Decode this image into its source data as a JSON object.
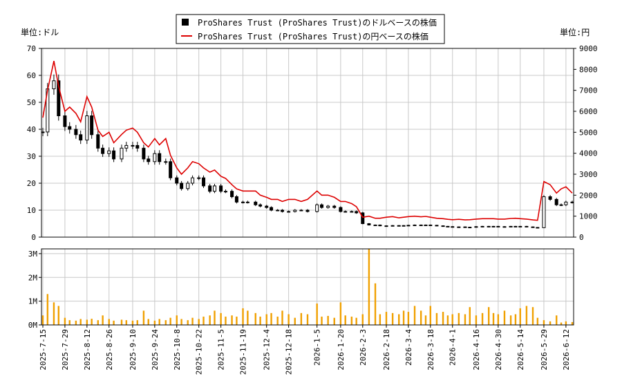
{
  "chart_data": {
    "type": "line",
    "legend": {
      "placement": "top-center",
      "items": [
        {
          "label": "ProShares Trust (ProShares Trust)のドルベースの株価",
          "swatch": "black-square",
          "color": "#000000"
        },
        {
          "label": "ProShares Trust (ProShares Trust)の円ベースの株価",
          "swatch": "red-line",
          "color": "#dd0000"
        }
      ]
    },
    "left_axis": {
      "unit_label": "単位:ドル",
      "ylim": [
        0,
        70
      ],
      "ticks": [
        0,
        10,
        20,
        30,
        40,
        50,
        60,
        70
      ]
    },
    "right_axis": {
      "unit_label": "単位:円",
      "ylim": [
        0,
        9000
      ],
      "ticks": [
        0,
        1000,
        2000,
        3000,
        4000,
        5000,
        6000,
        7000,
        8000,
        9000
      ]
    },
    "volume_axis": {
      "ylim": [
        0,
        3200000
      ],
      "ticks": [
        {
          "v": 0,
          "label": "0M"
        },
        {
          "v": 1000000,
          "label": "1M"
        },
        {
          "v": 2000000,
          "label": "2M"
        },
        {
          "v": 3000000,
          "label": "3M"
        }
      ]
    },
    "x_ticks": [
      "2025-7-15",
      "2025-7-29",
      "2025-8-12",
      "2025-8-26",
      "2025-9-10",
      "2025-9-24",
      "2025-10-8",
      "2025-10-22",
      "2025-11-5",
      "2025-11-19",
      "2025-12-4",
      "2025-12-18",
      "2026-1-5",
      "2026-1-20",
      "2026-2-3",
      "2026-2-18",
      "2026-3-4",
      "2026-3-18",
      "2026-4-1",
      "2026-4-16",
      "2026-4-30",
      "2026-5-14",
      "2026-5-29",
      "2026-6-12"
    ],
    "grid": true,
    "colors": {
      "usd_candle": "#000000",
      "jpy_line": "#dd0000",
      "volume_bar": "#f0a000",
      "grid": "#c8c8c8"
    },
    "series": [
      {
        "name": "ProShares Trust (ProShares Trust)のドルベースの株価",
        "axis": "left",
        "x": [
          "2025-7-15",
          "2025-7-18",
          "2025-7-22",
          "2025-7-25",
          "2025-7-29",
          "2025-8-1",
          "2025-8-5",
          "2025-8-8",
          "2025-8-12",
          "2025-8-15",
          "2025-8-19",
          "2025-8-22",
          "2025-8-26",
          "2025-8-29",
          "2025-9-3",
          "2025-9-6",
          "2025-9-10",
          "2025-9-13",
          "2025-9-17",
          "2025-9-20",
          "2025-9-24",
          "2025-9-27",
          "2025-10-1",
          "2025-10-4",
          "2025-10-8",
          "2025-10-11",
          "2025-10-15",
          "2025-10-18",
          "2025-10-22",
          "2025-10-25",
          "2025-10-29",
          "2025-11-1",
          "2025-11-5",
          "2025-11-8",
          "2025-11-12",
          "2025-11-15",
          "2025-11-19",
          "2025-11-22",
          "2025-11-27",
          "2025-11-30",
          "2025-12-4",
          "2025-12-7",
          "2025-12-11",
          "2025-12-14",
          "2025-12-18",
          "2025-12-22",
          "2025-12-26",
          "2025-12-30",
          "2026-1-5",
          "2026-1-8",
          "2026-1-12",
          "2026-1-16",
          "2026-1-20",
          "2026-1-23",
          "2026-1-27",
          "2026-1-30",
          "2026-2-3",
          "2026-2-7",
          "2026-2-11",
          "2026-2-14",
          "2026-2-18",
          "2026-2-22",
          "2026-2-26",
          "2026-3-1",
          "2026-3-4",
          "2026-3-8",
          "2026-3-12",
          "2026-3-15",
          "2026-3-18",
          "2026-3-22",
          "2026-3-26",
          "2026-3-29",
          "2026-4-1",
          "2026-4-5",
          "2026-4-9",
          "2026-4-12",
          "2026-4-16",
          "2026-4-20",
          "2026-4-24",
          "2026-4-27",
          "2026-4-30",
          "2026-5-4",
          "2026-5-8",
          "2026-5-11",
          "2026-5-14",
          "2026-5-18",
          "2026-5-22",
          "2026-5-25",
          "2026-5-29",
          "2026-6-2",
          "2026-6-6",
          "2026-6-9",
          "2026-6-12",
          "2026-6-16"
        ],
        "values": [
          39,
          55,
          58,
          45,
          41,
          40,
          38,
          36,
          45,
          38,
          33,
          31,
          32,
          29,
          33,
          34,
          34,
          33,
          29,
          28,
          31,
          28,
          28,
          22,
          20,
          18,
          20,
          22,
          22,
          19,
          17,
          19,
          17,
          17,
          15,
          13,
          13,
          13,
          12,
          11.5,
          11,
          10,
          10,
          9.5,
          9.5,
          10,
          10,
          9.5,
          12,
          11,
          11.5,
          11,
          9.5,
          9.5,
          9.5,
          9,
          5,
          4.5,
          4.5,
          4.2,
          4.2,
          4.3,
          4.3,
          4.3,
          4.4,
          4.5,
          4.4,
          4.5,
          4.4,
          4.2,
          4.0,
          3.9,
          3.8,
          3.8,
          3.7,
          3.7,
          3.9,
          4.0,
          4.0,
          4.0,
          3.9,
          3.9,
          4.0,
          4.0,
          4.0,
          3.8,
          3.6,
          3.5,
          15,
          14,
          12,
          12,
          13,
          13
        ]
      },
      {
        "name": "ProShares Trust (ProShares Trust)の円ベースの株価",
        "axis": "right",
        "x": [
          "2025-7-15",
          "2025-7-18",
          "2025-7-22",
          "2025-7-25",
          "2025-7-29",
          "2025-8-1",
          "2025-8-5",
          "2025-8-8",
          "2025-8-12",
          "2025-8-15",
          "2025-8-19",
          "2025-8-22",
          "2025-8-26",
          "2025-8-29",
          "2025-9-3",
          "2025-9-6",
          "2025-9-10",
          "2025-9-13",
          "2025-9-17",
          "2025-9-20",
          "2025-9-24",
          "2025-9-27",
          "2025-10-1",
          "2025-10-4",
          "2025-10-8",
          "2025-10-11",
          "2025-10-15",
          "2025-10-18",
          "2025-10-22",
          "2025-10-25",
          "2025-10-29",
          "2025-11-1",
          "2025-11-5",
          "2025-11-8",
          "2025-11-12",
          "2025-11-15",
          "2025-11-19",
          "2025-11-22",
          "2025-11-27",
          "2025-11-30",
          "2025-12-4",
          "2025-12-7",
          "2025-12-11",
          "2025-12-14",
          "2025-12-18",
          "2025-12-22",
          "2025-12-26",
          "2025-12-30",
          "2026-1-5",
          "2026-1-8",
          "2026-1-12",
          "2026-1-16",
          "2026-1-20",
          "2026-1-23",
          "2026-1-27",
          "2026-1-30",
          "2026-2-3",
          "2026-2-7",
          "2026-2-11",
          "2026-2-14",
          "2026-2-18",
          "2026-2-22",
          "2026-2-26",
          "2026-3-1",
          "2026-3-4",
          "2026-3-8",
          "2026-3-12",
          "2026-3-15",
          "2026-3-18",
          "2026-3-22",
          "2026-3-26",
          "2026-3-29",
          "2026-4-1",
          "2026-4-5",
          "2026-4-9",
          "2026-4-12",
          "2026-4-16",
          "2026-4-20",
          "2026-4-24",
          "2026-4-27",
          "2026-4-30",
          "2026-5-4",
          "2026-5-8",
          "2026-5-11",
          "2026-5-14",
          "2026-5-18",
          "2026-5-22",
          "2026-5-25",
          "2026-5-29",
          "2026-6-2",
          "2026-6-6",
          "2026-6-9",
          "2026-6-12",
          "2026-6-16"
        ],
        "values": [
          5700,
          7000,
          8400,
          7200,
          6000,
          6200,
          5900,
          5500,
          6700,
          6200,
          5100,
          4800,
          5000,
          4500,
          4900,
          5100,
          5200,
          5000,
          4500,
          4300,
          4700,
          4400,
          4700,
          3900,
          3300,
          3000,
          3300,
          3600,
          3500,
          3300,
          3100,
          3200,
          2900,
          2800,
          2500,
          2300,
          2200,
          2200,
          2200,
          2000,
          1900,
          1800,
          1800,
          1700,
          1800,
          1800,
          1700,
          1800,
          2200,
          2000,
          2000,
          1900,
          1700,
          1700,
          1600,
          1450,
          950,
          1000,
          900,
          900,
          950,
          980,
          920,
          950,
          980,
          1000,
          970,
          990,
          950,
          900,
          880,
          850,
          830,
          850,
          820,
          830,
          860,
          880,
          880,
          880,
          860,
          860,
          890,
          900,
          880,
          860,
          820,
          800,
          2650,
          2500,
          2100,
          2300,
          2400,
          2100
        ]
      },
      {
        "name": "",
        "axis": "volume",
        "x": [
          "2025-7-15",
          "2025-7-18",
          "2025-7-22",
          "2025-7-25",
          "2025-7-29",
          "2025-8-1",
          "2025-8-5",
          "2025-8-8",
          "2025-8-12",
          "2025-8-15",
          "2025-8-19",
          "2025-8-22",
          "2025-8-26",
          "2025-8-29",
          "2025-9-3",
          "2025-9-6",
          "2025-9-10",
          "2025-9-13",
          "2025-9-17",
          "2025-9-20",
          "2025-9-24",
          "2025-9-27",
          "2025-10-1",
          "2025-10-4",
          "2025-10-8",
          "2025-10-11",
          "2025-10-15",
          "2025-10-18",
          "2025-10-22",
          "2025-10-25",
          "2025-10-29",
          "2025-11-1",
          "2025-11-5",
          "2025-11-8",
          "2025-11-12",
          "2025-11-15",
          "2025-11-19",
          "2025-11-22",
          "2025-11-27",
          "2025-11-30",
          "2025-12-4",
          "2025-12-7",
          "2025-12-11",
          "2025-12-14",
          "2025-12-18",
          "2025-12-22",
          "2025-12-26",
          "2025-12-30",
          "2026-1-5",
          "2026-1-8",
          "2026-1-12",
          "2026-1-16",
          "2026-1-20",
          "2026-1-23",
          "2026-1-27",
          "2026-1-30",
          "2026-2-3",
          "2026-2-7",
          "2026-2-11",
          "2026-2-14",
          "2026-2-18",
          "2026-2-22",
          "2026-2-26",
          "2026-3-1",
          "2026-3-4",
          "2026-3-8",
          "2026-3-12",
          "2026-3-15",
          "2026-3-18",
          "2026-3-22",
          "2026-3-26",
          "2026-3-29",
          "2026-4-1",
          "2026-4-5",
          "2026-4-9",
          "2026-4-12",
          "2026-4-16",
          "2026-4-20",
          "2026-4-24",
          "2026-4-27",
          "2026-4-30",
          "2026-5-4",
          "2026-5-8",
          "2026-5-11",
          "2026-5-14",
          "2026-5-18",
          "2026-5-22",
          "2026-5-25",
          "2026-5-29",
          "2026-6-2",
          "2026-6-6",
          "2026-6-9",
          "2026-6-12",
          "2026-6-16"
        ],
        "values": [
          400000,
          1300000,
          950000,
          800000,
          300000,
          200000,
          180000,
          250000,
          220000,
          260000,
          200000,
          400000,
          250000,
          180000,
          220000,
          200000,
          180000,
          200000,
          600000,
          250000,
          180000,
          250000,
          200000,
          300000,
          400000,
          250000,
          200000,
          300000,
          250000,
          350000,
          400000,
          600000,
          500000,
          350000,
          400000,
          350000,
          700000,
          600000,
          500000,
          350000,
          450000,
          500000,
          350000,
          600000,
          450000,
          300000,
          500000,
          450000,
          900000,
          350000,
          380000,
          300000,
          950000,
          400000,
          350000,
          300000,
          450000,
          3200000,
          1750000,
          450000,
          550000,
          500000,
          450000,
          600000,
          550000,
          800000,
          600000,
          400000,
          800000,
          500000,
          550000,
          400000,
          450000,
          500000,
          450000,
          750000,
          400000,
          500000,
          750000,
          500000,
          450000,
          600000,
          400000,
          450000,
          700000,
          800000,
          750000,
          300000,
          200000,
          150000,
          400000,
          100000,
          150000,
          120000
        ]
      }
    ]
  }
}
